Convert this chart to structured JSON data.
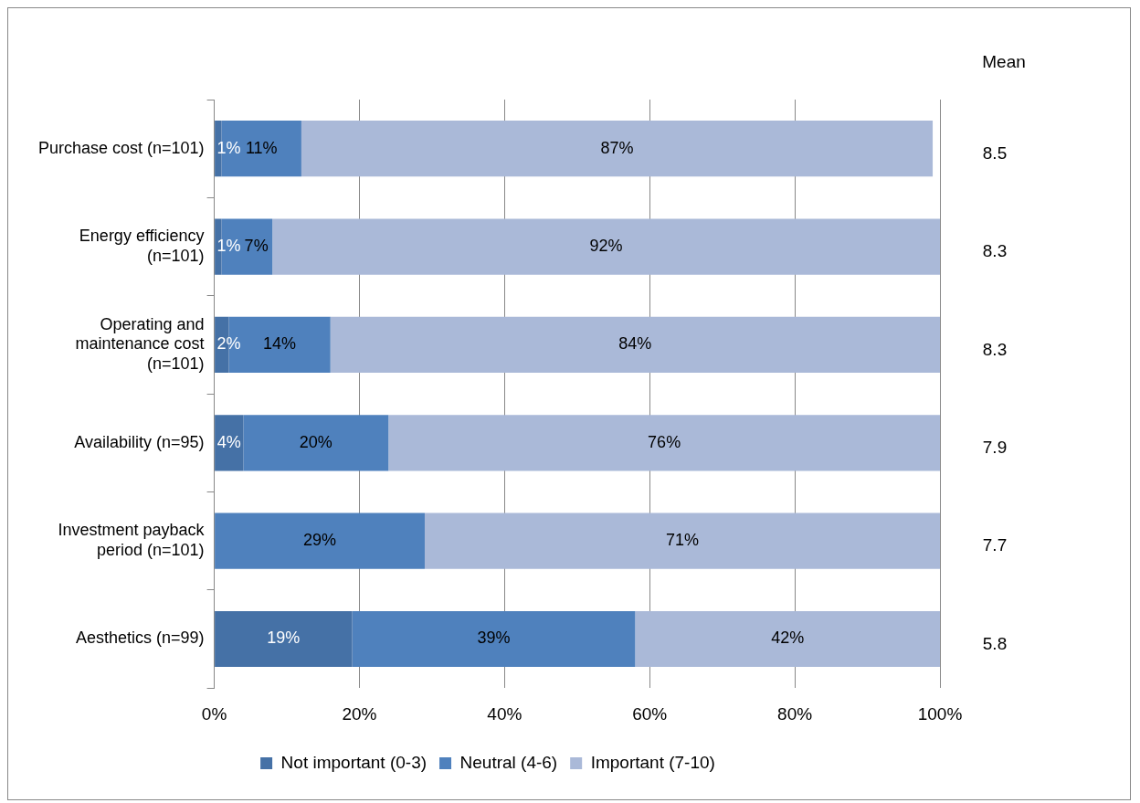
{
  "chart_data": {
    "type": "bar",
    "orientation": "horizontal",
    "stacked": true,
    "categories": [
      "Purchase cost (n=101)",
      "Energy efficiency (n=101)",
      "Operating and maintenance cost (n=101)",
      "Availability (n=95)",
      "Investment payback period (n=101)",
      "Aesthetics (n=99)"
    ],
    "series": [
      {
        "name": "Not important (0-3)",
        "color": "#4571a6",
        "values": [
          1,
          1,
          2,
          4,
          null,
          19
        ],
        "value_labels": [
          "1%",
          "1%",
          "2%",
          "4%",
          null,
          "19%"
        ]
      },
      {
        "name": "Neutral (4-6)",
        "color": "#4f81bd",
        "values": [
          11,
          7,
          14,
          20,
          29,
          39
        ],
        "value_labels": [
          "11%",
          "7%",
          "14%",
          "20%",
          "29%",
          "39%"
        ]
      },
      {
        "name": "Important (7-10)",
        "color": "#aab9d8",
        "values": [
          87,
          92,
          84,
          76,
          71,
          42
        ],
        "value_labels": [
          "87%",
          "92%",
          "84%",
          "76%",
          "71%",
          "42%"
        ]
      }
    ],
    "xlim": [
      0,
      100
    ],
    "xticks": [
      {
        "value": 0,
        "label": "0%"
      },
      {
        "value": 20,
        "label": "20%"
      },
      {
        "value": 40,
        "label": "40%"
      },
      {
        "value": 60,
        "label": "60%"
      },
      {
        "value": 80,
        "label": "80%"
      },
      {
        "value": 100,
        "label": "100%"
      }
    ],
    "grid": "x",
    "legend": "bottom",
    "annotations": [
      "Mean",
      "8.5",
      "8.3",
      "8.3",
      "7.9",
      "7.7",
      "5.8"
    ]
  }
}
